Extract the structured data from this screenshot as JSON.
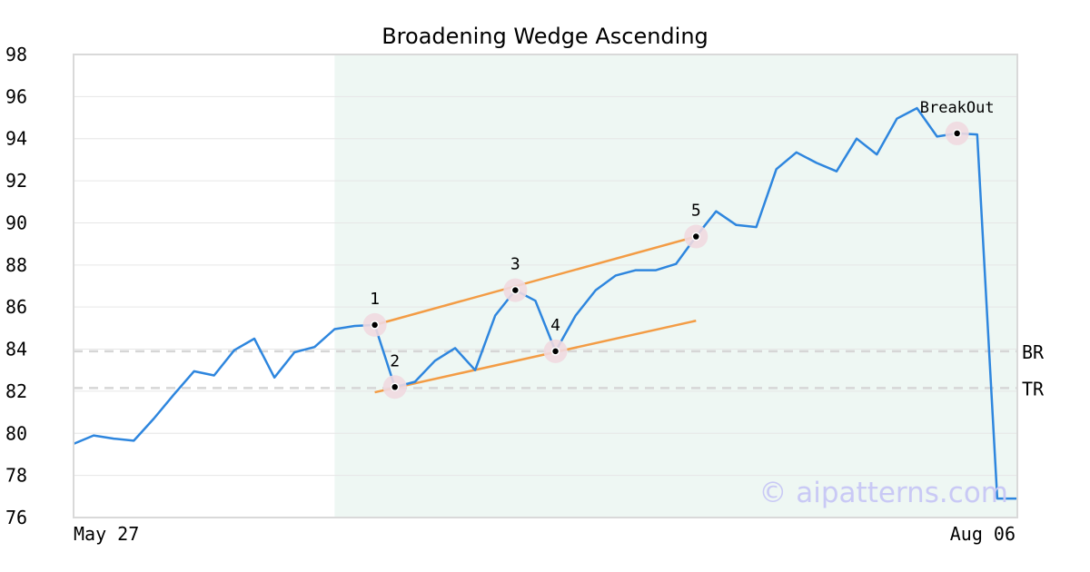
{
  "chart_data": {
    "type": "line",
    "title": "Broadening Wedge Ascending",
    "x_start_label": "May 27",
    "x_end_label": "Aug 06",
    "ylim": [
      76,
      98
    ],
    "y_ticks": [
      76,
      78,
      80,
      82,
      84,
      86,
      88,
      90,
      92,
      94,
      96,
      98
    ],
    "grid": true,
    "highlight_band": {
      "from_index": 13,
      "to_index": 47
    },
    "series": [
      {
        "values": [
          79.5,
          79.9,
          79.75,
          79.65,
          80.7,
          81.85,
          82.95,
          82.75,
          83.95,
          84.5,
          82.65,
          83.85,
          84.1,
          84.95,
          85.1,
          85.15,
          82.2,
          82.45,
          83.45,
          84.05,
          83.0,
          85.6,
          86.8,
          86.3,
          83.9,
          85.6,
          86.8,
          87.5,
          87.75,
          87.75,
          88.05,
          89.35,
          90.55,
          89.9,
          89.8,
          92.55,
          93.35,
          92.85,
          92.45,
          94.0,
          93.25,
          94.95,
          95.45,
          94.1,
          94.25,
          94.2,
          76.9,
          76.9
        ]
      }
    ],
    "pivots": [
      {
        "label": "1",
        "index": 15,
        "value": 85.15
      },
      {
        "label": "2",
        "index": 16,
        "value": 82.2
      },
      {
        "label": "3",
        "index": 22,
        "value": 86.8
      },
      {
        "label": "4",
        "index": 24,
        "value": 83.9
      },
      {
        "label": "5",
        "index": 31,
        "value": 89.35
      },
      {
        "label": "BreakOut",
        "index": 44,
        "value": 94.25
      }
    ],
    "trendlines": [
      {
        "from": {
          "index": 15,
          "value": 85.15
        },
        "to": {
          "index": 31,
          "value": 89.35
        }
      },
      {
        "from": {
          "index": 15,
          "value": 81.95
        },
        "to": {
          "index": 31,
          "value": 85.35
        }
      }
    ],
    "reference_lines": [
      {
        "label": "BR",
        "value": 83.9
      },
      {
        "label": "TR",
        "value": 82.15
      }
    ],
    "colors": {
      "price": "#2e86de",
      "trendline": "#f39c45",
      "band": "#eef7f3",
      "pivot_halo": "#f0d9e0",
      "reference": "#d6d6d6",
      "watermark": "#c9c9f5"
    },
    "watermark": "© aipatterns.com"
  }
}
